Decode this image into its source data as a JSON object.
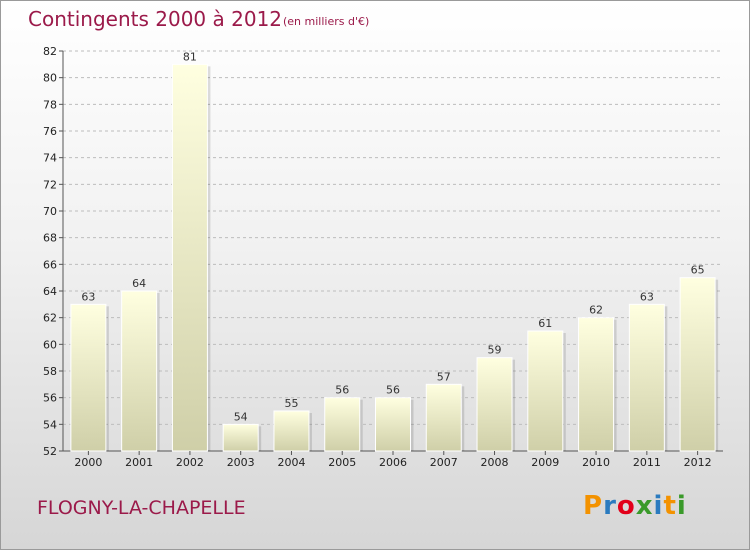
{
  "header": {
    "title": "Contingents 2000 à 2012",
    "subtitle": "(en milliers d'€)"
  },
  "footer": {
    "location": "FLOGNY-LA-CHAPELLE",
    "logo_text": "Proxiti"
  },
  "colors": {
    "title": "#9b1a4a",
    "bar_top": "#ffffe0",
    "bar_bottom": "#cfcfa8",
    "grid": "#bdbdbd",
    "logo": [
      "#f39200",
      "#2b7bbf",
      "#e2001a",
      "#3a9a2a",
      "#2b7bbf",
      "#f39200",
      "#3a9a2a"
    ]
  },
  "chart_data": {
    "type": "bar",
    "title": "Contingents 2000 à 2012",
    "subtitle": "(en milliers d'€)",
    "xlabel": "",
    "ylabel": "",
    "categories": [
      "2000",
      "2001",
      "2002",
      "2003",
      "2004",
      "2005",
      "2006",
      "2007",
      "2008",
      "2009",
      "2010",
      "2011",
      "2012"
    ],
    "values": [
      63,
      64,
      81,
      54,
      55,
      56,
      56,
      57,
      59,
      61,
      62,
      63,
      65
    ],
    "ylim": [
      52,
      82
    ],
    "yticks": [
      52,
      54,
      56,
      58,
      60,
      62,
      64,
      66,
      68,
      70,
      72,
      74,
      76,
      78,
      80,
      82
    ],
    "grid": true,
    "legend": "none"
  }
}
